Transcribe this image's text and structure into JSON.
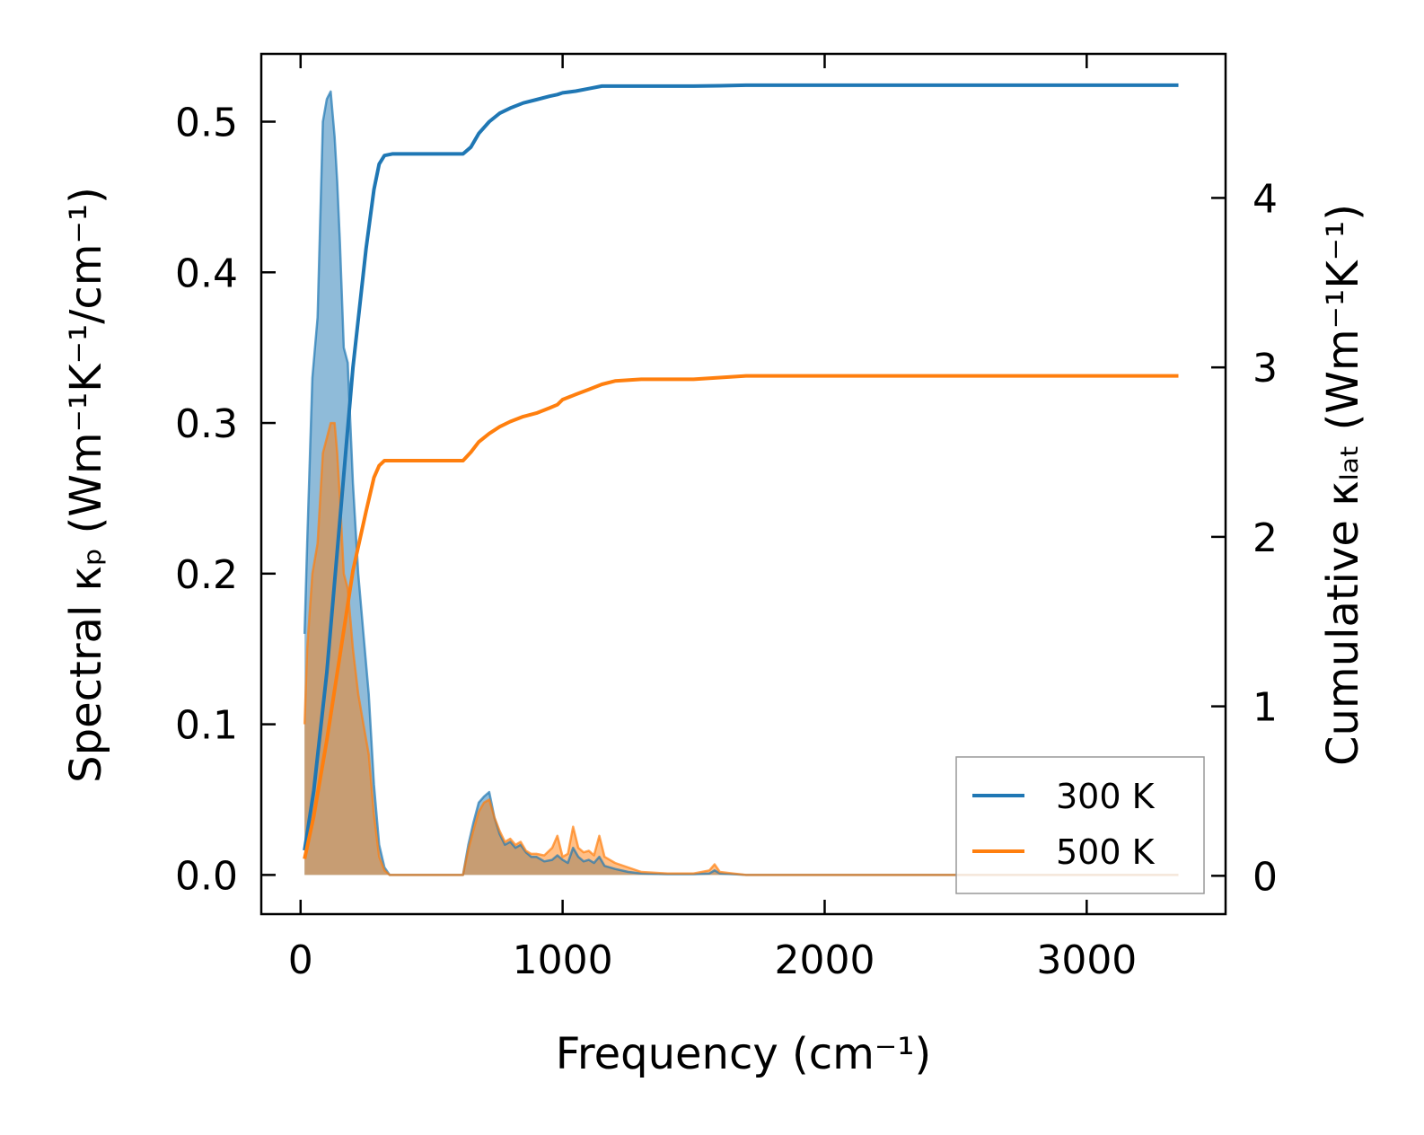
{
  "chart_data": {
    "type": "line",
    "xlabel": "Frequency (cm⁻¹)",
    "ylabel": "Spectral κₚ (Wm⁻¹K⁻¹/cm⁻¹)",
    "ylabel_right": "Cumulative κₗₐₜ (Wm⁻¹K⁻¹)",
    "xlim": [
      -150,
      3530
    ],
    "ylim": [
      -0.026,
      0.545
    ],
    "ylim_right": [
      -0.226,
      4.85
    ],
    "xticks": [
      0,
      1000,
      2000,
      3000
    ],
    "xtick_labels": [
      "0",
      "1000",
      "2000",
      "3000"
    ],
    "yticks": [
      0.0,
      0.1,
      0.2,
      0.3,
      0.4,
      0.5
    ],
    "ytick_labels": [
      "0.0",
      "0.1",
      "0.2",
      "0.3",
      "0.4",
      "0.5"
    ],
    "yticks_right": [
      0,
      1,
      2,
      3,
      4
    ],
    "ytick_labels_right": [
      "0",
      "1",
      "2",
      "3",
      "4"
    ],
    "legend": {
      "position": "lower-right",
      "entries": [
        "300 K",
        "500 K"
      ]
    },
    "colors": {
      "s300": "#1f77b4",
      "s500": "#ff7f0e",
      "fill300": "#1f77b4",
      "fill500": "#ff7f0e"
    },
    "spectral": [
      {
        "name": "300 K",
        "x": [
          15,
          25,
          45,
          65,
          85,
          100,
          115,
          130,
          140,
          150,
          165,
          180,
          200,
          220,
          240,
          260,
          280,
          300,
          320,
          340,
          360,
          380,
          600,
          620,
          640,
          660,
          680,
          700,
          720,
          740,
          760,
          780,
          800,
          820,
          840,
          860,
          880,
          900,
          930,
          960,
          980,
          1000,
          1020,
          1040,
          1060,
          1080,
          1100,
          1120,
          1140,
          1160,
          1200,
          1250,
          1300,
          1400,
          1500,
          1560,
          1580,
          1600,
          1650,
          1700,
          2000,
          2500,
          3000,
          3350
        ],
        "y": [
          0.16,
          0.22,
          0.33,
          0.37,
          0.5,
          0.515,
          0.52,
          0.49,
          0.46,
          0.42,
          0.35,
          0.34,
          0.26,
          0.2,
          0.16,
          0.12,
          0.06,
          0.02,
          0.005,
          0.0,
          0.0,
          0.0,
          0.0,
          0.0,
          0.02,
          0.035,
          0.048,
          0.052,
          0.055,
          0.038,
          0.027,
          0.02,
          0.022,
          0.018,
          0.02,
          0.015,
          0.012,
          0.012,
          0.009,
          0.01,
          0.013,
          0.01,
          0.008,
          0.018,
          0.012,
          0.009,
          0.01,
          0.008,
          0.012,
          0.006,
          0.004,
          0.002,
          0.001,
          0.0005,
          0.0005,
          0.001,
          0.003,
          0.001,
          0.0005,
          0.0,
          0.0,
          0.0,
          0.0,
          0.0
        ]
      },
      {
        "name": "500 K",
        "x": [
          15,
          25,
          45,
          65,
          85,
          100,
          115,
          130,
          140,
          150,
          165,
          180,
          200,
          220,
          240,
          260,
          280,
          300,
          320,
          340,
          360,
          380,
          600,
          620,
          640,
          660,
          680,
          700,
          720,
          740,
          760,
          780,
          800,
          820,
          840,
          860,
          880,
          900,
          930,
          960,
          980,
          1000,
          1020,
          1040,
          1060,
          1080,
          1100,
          1120,
          1140,
          1160,
          1200,
          1250,
          1300,
          1400,
          1500,
          1560,
          1580,
          1600,
          1650,
          1700,
          2000,
          2500,
          3000,
          3350
        ],
        "y": [
          0.1,
          0.15,
          0.2,
          0.22,
          0.28,
          0.29,
          0.3,
          0.3,
          0.28,
          0.25,
          0.2,
          0.19,
          0.15,
          0.12,
          0.1,
          0.08,
          0.04,
          0.012,
          0.003,
          0.0,
          0.0,
          0.0,
          0.0,
          0.0,
          0.017,
          0.03,
          0.042,
          0.048,
          0.05,
          0.038,
          0.029,
          0.022,
          0.024,
          0.02,
          0.022,
          0.016,
          0.014,
          0.014,
          0.013,
          0.018,
          0.026,
          0.012,
          0.014,
          0.032,
          0.018,
          0.015,
          0.016,
          0.013,
          0.026,
          0.012,
          0.008,
          0.005,
          0.002,
          0.001,
          0.001,
          0.003,
          0.007,
          0.002,
          0.001,
          0.0,
          0.0,
          0.0,
          0.0,
          0.0
        ]
      }
    ],
    "cumulative": [
      {
        "name": "300 K",
        "x": [
          15,
          50,
          100,
          150,
          200,
          250,
          280,
          300,
          320,
          350,
          400,
          500,
          620,
          650,
          680,
          720,
          760,
          800,
          850,
          900,
          950,
          980,
          1000,
          1050,
          1100,
          1150,
          1200,
          1300,
          1500,
          1600,
          1700,
          2000,
          3000,
          3350
        ],
        "y": [
          0.15,
          0.5,
          1.2,
          2.1,
          3.0,
          3.7,
          4.05,
          4.2,
          4.25,
          4.26,
          4.26,
          4.26,
          4.26,
          4.3,
          4.38,
          4.45,
          4.5,
          4.53,
          4.56,
          4.58,
          4.6,
          4.61,
          4.62,
          4.63,
          4.645,
          4.66,
          4.66,
          4.66,
          4.66,
          4.662,
          4.665,
          4.665,
          4.665,
          4.665
        ]
      },
      {
        "name": "500 K",
        "x": [
          15,
          50,
          100,
          150,
          200,
          250,
          280,
          300,
          320,
          350,
          400,
          500,
          620,
          650,
          680,
          720,
          760,
          800,
          850,
          900,
          950,
          980,
          1000,
          1050,
          1100,
          1150,
          1200,
          1300,
          1500,
          1600,
          1700,
          2000,
          3000,
          3350
        ],
        "y": [
          0.1,
          0.35,
          0.8,
          1.3,
          1.8,
          2.15,
          2.35,
          2.42,
          2.45,
          2.45,
          2.45,
          2.45,
          2.45,
          2.5,
          2.56,
          2.61,
          2.65,
          2.68,
          2.71,
          2.73,
          2.76,
          2.78,
          2.81,
          2.84,
          2.87,
          2.9,
          2.92,
          2.93,
          2.93,
          2.94,
          2.95,
          2.95,
          2.95,
          2.95
        ]
      }
    ]
  }
}
